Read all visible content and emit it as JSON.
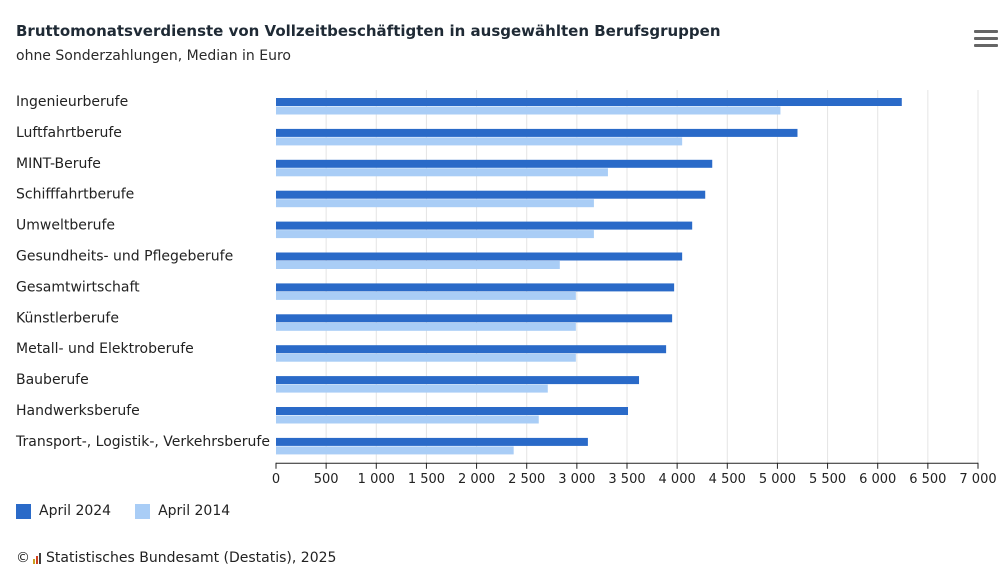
{
  "header": {
    "title": "Bruttomonatsverdienste von Vollzeitbeschäftigten in ausgewählten Berufsgruppen",
    "subtitle": "ohne Sonderzahlungen, Median in Euro"
  },
  "menu": {
    "icon": "hamburger-menu-icon"
  },
  "colors": {
    "series_2024": "#2a6ac8",
    "series_2014": "#a9cdf6",
    "grid": "#e4e4e4",
    "axis": "#222222"
  },
  "chart_data": {
    "type": "bar",
    "orientation": "horizontal",
    "categories": [
      "Ingenieurberufe",
      "Luftfahrtberufe",
      "MINT-Berufe",
      "Schifffahrtberufe",
      "Umweltberufe",
      "Gesundheits- und Pflegeberufe",
      "Gesamtwirtschaft",
      "Künstlerberufe",
      "Metall- und Elektroberufe",
      "Bauberufe",
      "Handwerksberufe",
      "Transport-, Logistik-, Verkehrsberufe"
    ],
    "series": [
      {
        "name": "April 2024",
        "values": [
          6240,
          5200,
          4350,
          4280,
          4150,
          4050,
          3970,
          3950,
          3890,
          3620,
          3510,
          3110
        ]
      },
      {
        "name": "April 2014",
        "values": [
          5030,
          4050,
          3310,
          3170,
          3170,
          2830,
          2990,
          2990,
          2990,
          2710,
          2620,
          2370
        ]
      }
    ],
    "xlim": [
      0,
      7000
    ],
    "ticks": [
      0,
      500,
      1000,
      1500,
      2000,
      2500,
      3000,
      3500,
      4000,
      4500,
      5000,
      5500,
      6000,
      6500,
      7000
    ],
    "tick_labels": [
      "0",
      "500",
      "1 000",
      "1 500",
      "2 000",
      "2 500",
      "3 000",
      "3 500",
      "4 000",
      "4 500",
      "5 000",
      "5 500",
      "6 000",
      "6 500",
      "7 000"
    ],
    "grid": true,
    "legend": "bottom-left"
  },
  "legend": {
    "items": [
      "April 2024",
      "April 2014"
    ]
  },
  "credit": {
    "prefix": "©",
    "text": "Statistisches Bundesamt (Destatis), 2025"
  }
}
